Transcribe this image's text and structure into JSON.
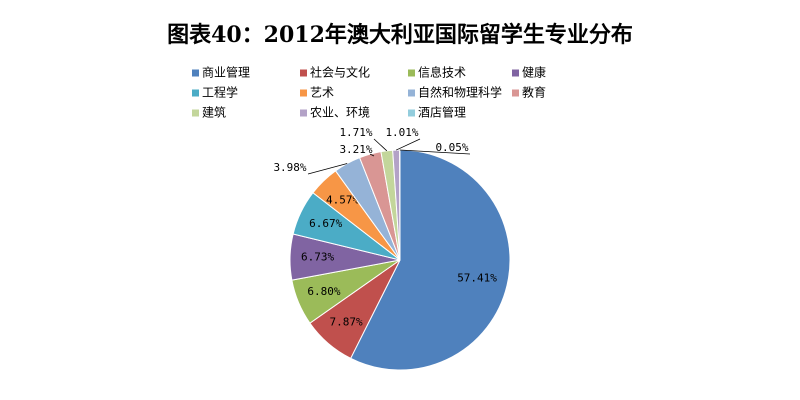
{
  "chart_data": {
    "type": "pie",
    "title": "图表40：2012年澳大利亚国际留学生专业分布",
    "categories": [
      "商业管理",
      "社会与文化",
      "信息技术",
      "健康",
      "工程学",
      "艺术",
      "自然和物理科学",
      "教育",
      "建筑",
      "农业、环境",
      "酒店管理"
    ],
    "values": [
      57.41,
      7.87,
      6.8,
      6.73,
      6.67,
      4.57,
      3.98,
      3.21,
      1.71,
      1.01,
      0.05
    ],
    "value_labels": [
      "57.41%",
      "7.87%",
      "6.80%",
      "6.73%",
      "6.67%",
      "4.57%",
      "3.98%",
      "3.21%",
      "1.71%",
      "1.01%",
      "0.05%"
    ],
    "colors": [
      "#4F81BD",
      "#C0504D",
      "#9BBB59",
      "#8064A2",
      "#4BACC6",
      "#F79646",
      "#95B3D7",
      "#D99694",
      "#C3D69B",
      "#B3A2C7",
      "#93CDDD"
    ],
    "legend": "top"
  }
}
